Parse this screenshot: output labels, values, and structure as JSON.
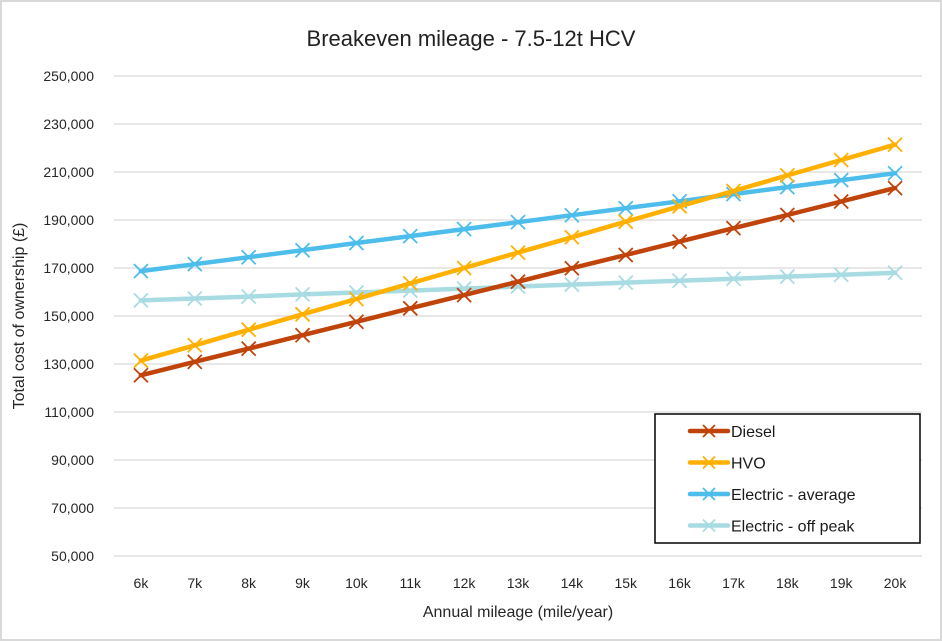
{
  "chart_data": {
    "type": "line",
    "title": "Breakeven mileage - 7.5-12t HCV",
    "xlabel": "Annual mileage (mile/year)",
    "ylabel": "Total cost of ownership (£)",
    "categories": [
      "6k",
      "7k",
      "8k",
      "9k",
      "10k",
      "11k",
      "12k",
      "13k",
      "14k",
      "15k",
      "16k",
      "17k",
      "18k",
      "19k",
      "20k"
    ],
    "ylim": [
      50000,
      250000
    ],
    "ytick_step": 20000,
    "yticks": [
      "50,000",
      "70,000",
      "90,000",
      "110,000",
      "130,000",
      "150,000",
      "170,000",
      "190,000",
      "210,000",
      "230,000",
      "250,000"
    ],
    "grid": true,
    "legend_position": "bottom-right",
    "marker": "x",
    "series": [
      {
        "name": "Diesel",
        "color": "#C0440A",
        "values": [
          125300,
          130900,
          136400,
          142000,
          147600,
          153200,
          158700,
          164300,
          169900,
          175400,
          181000,
          186600,
          192100,
          197700,
          203300
        ]
      },
      {
        "name": "HVO",
        "color": "#FFB000",
        "values": [
          131400,
          137800,
          144300,
          150700,
          157100,
          163600,
          170000,
          176400,
          182800,
          189300,
          195700,
          202100,
          208600,
          215000,
          221400
        ]
      },
      {
        "name": "Electric - average",
        "color": "#4DBDEB",
        "values": [
          168700,
          171600,
          174500,
          177400,
          180400,
          183300,
          186200,
          189100,
          192000,
          194900,
          197800,
          200800,
          203700,
          206600,
          209500
        ]
      },
      {
        "name": "Electric - off peak",
        "color": "#A8DCE2",
        "values": [
          156500,
          157300,
          158100,
          159000,
          159800,
          160600,
          161400,
          162300,
          163100,
          163900,
          164700,
          165500,
          166400,
          167200,
          168000
        ]
      }
    ]
  }
}
